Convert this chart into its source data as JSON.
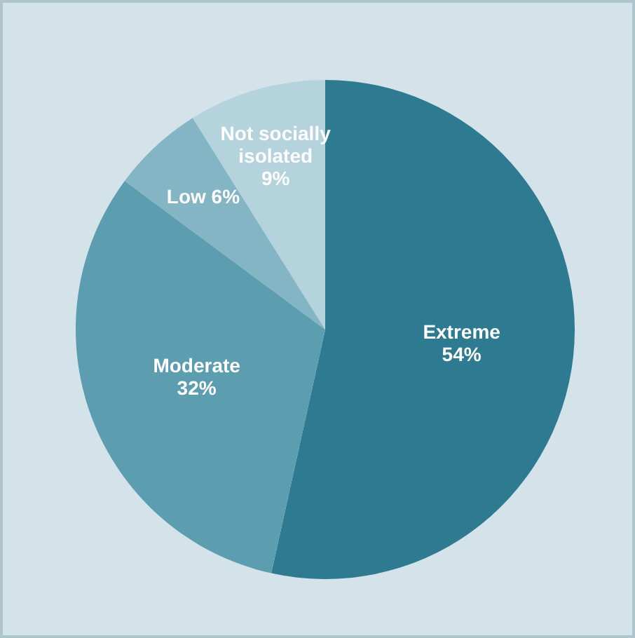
{
  "chart_data": {
    "type": "pie",
    "categories": [
      "Extreme",
      "Moderate",
      "Low",
      "Not socially isolated"
    ],
    "values": [
      54,
      32,
      6,
      9
    ],
    "value_labels": [
      "54%",
      "32%",
      "6%",
      "9%"
    ],
    "colors": [
      "#2e7b91",
      "#5c9db0",
      "#84b5c4",
      "#b5d3dd"
    ]
  }
}
